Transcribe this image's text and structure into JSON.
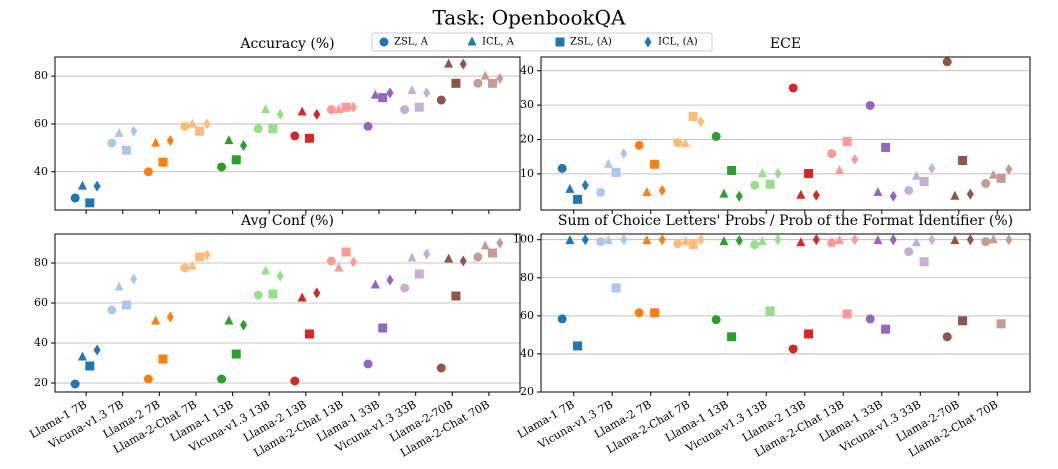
{
  "chart_data": {
    "type": "scatter",
    "title": "Task: OpenbookQA",
    "categories": [
      "Llama-1 7B",
      "Vicuna-v1.3 7B",
      "Llama-2 7B",
      "Llama-2-Chat 7B",
      "Llama-1 13B",
      "Vicuna-v1.3 13B",
      "Llama-2 13B",
      "Llama-2-Chat 13B",
      "Llama-1 33B",
      "Vicuna-v1.3 33B",
      "Llama-2-70B",
      "Llama-2-Chat 70B"
    ],
    "model_colors": [
      "#1f77b4",
      "#aec7e8",
      "#ff7f0e",
      "#ffbb78",
      "#2ca02c",
      "#98df8a",
      "#d62728",
      "#ff9896",
      "#9467bd",
      "#c5b0d5",
      "#8c564b",
      "#c49c94"
    ],
    "series": [
      {
        "name": "ZSL, A",
        "marker": "circle",
        "color": "#1f77b4"
      },
      {
        "name": "ICL, A",
        "marker": "triangle",
        "color": "#1f77b4"
      },
      {
        "name": "ZSL, (A)",
        "marker": "square",
        "color": "#1f77b4"
      },
      {
        "name": "ICL, (A)",
        "marker": "diamond",
        "color": "#1f77b4"
      }
    ],
    "grid": true,
    "panels": [
      {
        "title": "Accuracy (%)",
        "ylim": [
          24,
          88
        ],
        "yticks": [
          40,
          60,
          80
        ],
        "values": [
          [
            29,
            52,
            40,
            59,
            42,
            58,
            55,
            66,
            59,
            66,
            70,
            77
          ],
          [
            34,
            56,
            52,
            60,
            53,
            66,
            65,
            66,
            72,
            74,
            85,
            80
          ],
          [
            27,
            49,
            44,
            57,
            45,
            58,
            54,
            67,
            71,
            67,
            77,
            77
          ],
          [
            34,
            57,
            53,
            60,
            51,
            64,
            64,
            67,
            73,
            73,
            85,
            79
          ]
        ]
      },
      {
        "title": "ECE",
        "ylim": [
          -0.5,
          44
        ],
        "yticks": [
          10,
          20,
          30,
          40
        ],
        "values": [
          [
            11.6,
            4.6,
            18.3,
            19.1,
            20.9,
            6.7,
            35,
            15.9,
            29.9,
            5.2,
            42.6,
            7.2
          ],
          [
            5.5,
            12.8,
            4.6,
            18.8,
            4.1,
            10.1,
            3.8,
            11,
            4.6,
            9.3,
            3.5,
            9.6
          ],
          [
            2.6,
            10.4,
            12.8,
            26.7,
            11,
            7,
            10.1,
            19.4,
            17.7,
            7.8,
            13.9,
            8.7
          ],
          [
            6.7,
            15.9,
            5.2,
            25.2,
            3.5,
            10.1,
            3.8,
            14.2,
            3.5,
            11.6,
            4.1,
            11.3
          ]
        ]
      },
      {
        "title": "Avg Conf (%)",
        "ylim": [
          15.5,
          94.5
        ],
        "yticks": [
          20,
          40,
          60,
          80
        ],
        "values": [
          [
            19.5,
            56.5,
            22,
            77.5,
            22,
            64,
            21,
            81,
            29.5,
            67.5,
            27.5,
            83
          ],
          [
            33,
            68,
            51,
            78.5,
            51,
            76,
            62.5,
            77.5,
            69,
            82.5,
            82,
            88.5
          ],
          [
            28.5,
            59,
            32,
            83,
            34.5,
            64.5,
            44.5,
            85.5,
            47.5,
            74.5,
            63.5,
            85
          ],
          [
            36.5,
            72,
            53,
            84,
            49,
            73.5,
            65,
            80.5,
            71.5,
            84.5,
            81,
            90
          ]
        ]
      },
      {
        "title": "Sum of Choice Letters' Probs / Prob of the Format Identifier (%)",
        "ylim": [
          20,
          103
        ],
        "yticks": [
          20,
          40,
          60,
          80,
          100
        ],
        "values": [
          [
            58.4,
            99,
            61.6,
            98,
            58,
            97.4,
            42.6,
            98.4,
            58.4,
            93.7,
            49,
            99
          ],
          [
            99.5,
            99.5,
            99.5,
            99,
            99,
            99,
            98.4,
            99.5,
            99.5,
            98.4,
            99.5,
            100
          ],
          [
            44.2,
            74.7,
            61.6,
            97.4,
            49,
            62.6,
            50.5,
            61,
            53,
            88.4,
            57.4,
            55.8
          ],
          [
            100,
            100,
            100,
            100,
            99.5,
            100,
            100,
            100,
            100,
            100,
            100,
            100
          ]
        ]
      }
    ]
  }
}
